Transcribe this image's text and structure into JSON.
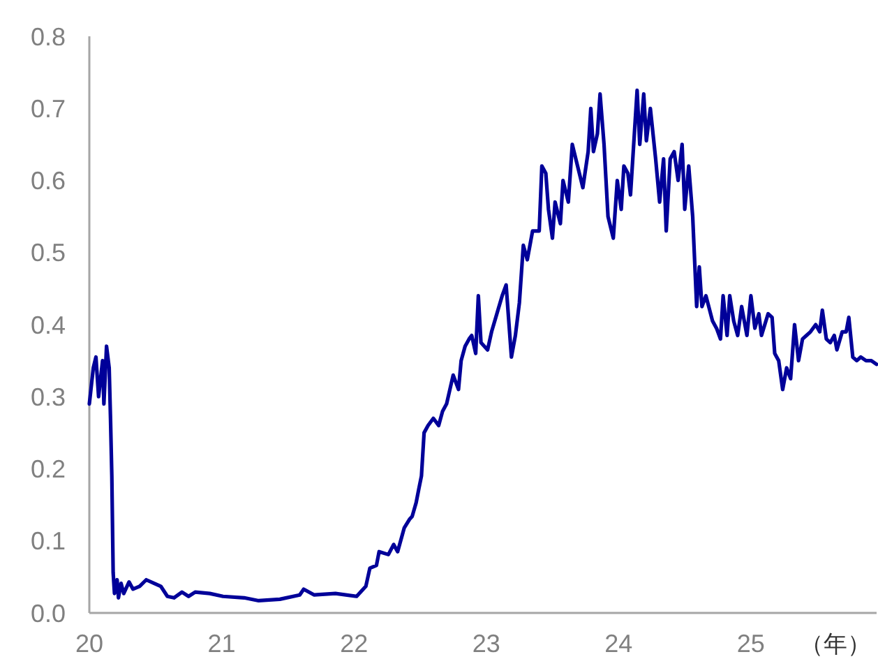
{
  "chart_data": {
    "type": "line",
    "xlabel": "（年）",
    "xlim": [
      20,
      25.95
    ],
    "xticks": [
      20,
      21,
      22,
      23,
      24,
      25
    ],
    "ylim": [
      0,
      0.8
    ],
    "yticks": [
      {
        "value": 0,
        "label": "0.0"
      },
      0.1,
      0.2,
      0.3,
      0.4,
      0.5,
      0.6,
      0.7,
      0.8
    ],
    "marker": "none",
    "line_style": "solid",
    "series": [
      {
        "color": "#000099",
        "x": [
          20.0,
          20.03,
          20.05,
          20.07,
          20.1,
          20.11,
          20.13,
          20.15,
          20.16,
          20.17,
          20.18,
          20.19,
          20.21,
          20.22,
          20.24,
          20.26,
          20.3,
          20.33,
          20.38,
          20.43,
          20.49,
          20.54,
          20.59,
          20.64,
          20.7,
          20.75,
          20.8,
          20.91,
          21.01,
          21.17,
          21.28,
          21.44,
          21.59,
          21.62,
          21.7,
          21.86,
          22.02,
          22.09,
          22.12,
          22.17,
          22.19,
          22.26,
          22.3,
          22.33,
          22.38,
          22.42,
          22.44,
          22.47,
          22.49,
          22.51,
          22.53,
          22.56,
          22.6,
          22.64,
          22.67,
          22.7,
          22.75,
          22.79,
          22.81,
          22.84,
          22.87,
          22.89,
          22.92,
          22.94,
          22.96,
          23.01,
          23.04,
          23.08,
          23.12,
          23.15,
          23.19,
          23.22,
          23.25,
          23.28,
          23.31,
          23.35,
          23.4,
          23.42,
          23.45,
          23.47,
          23.5,
          23.52,
          23.56,
          23.58,
          23.62,
          23.65,
          23.69,
          23.73,
          23.77,
          23.79,
          23.81,
          23.84,
          23.86,
          23.89,
          23.92,
          23.96,
          23.99,
          24.02,
          24.04,
          24.07,
          24.09,
          24.14,
          24.16,
          24.19,
          24.21,
          24.24,
          24.28,
          24.31,
          24.34,
          24.36,
          24.39,
          24.42,
          24.45,
          24.48,
          24.5,
          24.53,
          24.56,
          24.59,
          24.61,
          24.63,
          24.66,
          24.71,
          24.74,
          24.77,
          24.79,
          24.82,
          24.84,
          24.87,
          24.9,
          24.93,
          24.97,
          25.0,
          25.03,
          25.06,
          25.08,
          25.13,
          25.16,
          25.18,
          25.21,
          25.24,
          25.27,
          25.3,
          25.33,
          25.36,
          25.39,
          25.42,
          25.45,
          25.49,
          25.52,
          25.54,
          25.57,
          25.6,
          25.63,
          25.65,
          25.69,
          25.72,
          25.74,
          25.77,
          25.8,
          25.83,
          25.87,
          25.91,
          25.95
        ],
        "values": [
          0.29,
          0.34,
          0.355,
          0.3,
          0.35,
          0.29,
          0.37,
          0.34,
          0.27,
          0.19,
          0.056,
          0.027,
          0.046,
          0.021,
          0.041,
          0.027,
          0.043,
          0.033,
          0.037,
          0.046,
          0.041,
          0.037,
          0.023,
          0.021,
          0.029,
          0.023,
          0.029,
          0.027,
          0.023,
          0.021,
          0.017,
          0.019,
          0.025,
          0.033,
          0.025,
          0.027,
          0.023,
          0.037,
          0.062,
          0.066,
          0.085,
          0.081,
          0.095,
          0.085,
          0.118,
          0.13,
          0.134,
          0.153,
          0.172,
          0.19,
          0.25,
          0.26,
          0.27,
          0.26,
          0.28,
          0.29,
          0.33,
          0.31,
          0.35,
          0.37,
          0.38,
          0.385,
          0.36,
          0.44,
          0.375,
          0.365,
          0.39,
          0.415,
          0.44,
          0.455,
          0.355,
          0.385,
          0.43,
          0.51,
          0.49,
          0.53,
          0.53,
          0.62,
          0.61,
          0.56,
          0.52,
          0.57,
          0.54,
          0.6,
          0.57,
          0.65,
          0.62,
          0.59,
          0.64,
          0.7,
          0.64,
          0.665,
          0.72,
          0.65,
          0.55,
          0.52,
          0.6,
          0.56,
          0.62,
          0.61,
          0.58,
          0.725,
          0.65,
          0.72,
          0.655,
          0.7,
          0.63,
          0.57,
          0.63,
          0.53,
          0.63,
          0.64,
          0.6,
          0.65,
          0.56,
          0.62,
          0.55,
          0.425,
          0.48,
          0.425,
          0.44,
          0.405,
          0.395,
          0.38,
          0.44,
          0.385,
          0.44,
          0.405,
          0.385,
          0.425,
          0.385,
          0.44,
          0.395,
          0.415,
          0.385,
          0.415,
          0.41,
          0.36,
          0.35,
          0.31,
          0.34,
          0.325,
          0.4,
          0.35,
          0.38,
          0.385,
          0.39,
          0.4,
          0.39,
          0.42,
          0.38,
          0.375,
          0.385,
          0.365,
          0.39,
          0.39,
          0.41,
          0.355,
          0.35,
          0.355,
          0.35,
          0.35,
          0.345
        ]
      }
    ]
  }
}
